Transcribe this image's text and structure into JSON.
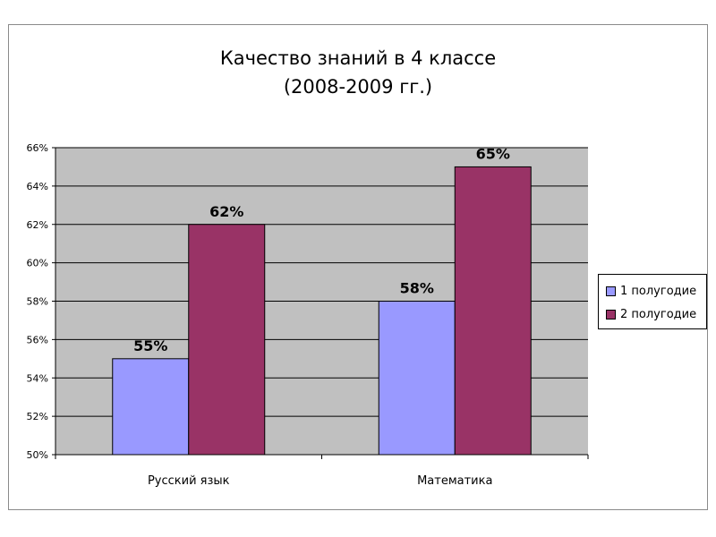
{
  "chart_data": {
    "type": "bar",
    "title": "Качество знаний в 4 классе",
    "subtitle": "(2008-2009 гг.)",
    "categories": [
      "Русский язык",
      "Математика"
    ],
    "series": [
      {
        "name": "1 полугодие",
        "values": [
          55,
          58
        ],
        "labels": [
          "55%",
          "58%"
        ],
        "color": "#9999ff"
      },
      {
        "name": "2 полугодие",
        "values": [
          62,
          65
        ],
        "labels": [
          "62%",
          "65%"
        ],
        "color": "#993366"
      }
    ],
    "ylim": [
      50,
      66
    ],
    "yticks": [
      "50%",
      "52%",
      "54%",
      "56%",
      "58%",
      "60%",
      "62%",
      "64%",
      "66%"
    ],
    "grid": true,
    "plot_background": "#c0c0c0",
    "legend_position": "right"
  }
}
